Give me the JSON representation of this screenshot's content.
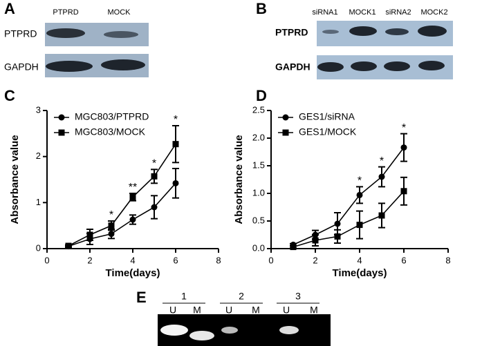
{
  "figure": {
    "panel_labels": [
      "A",
      "B",
      "C",
      "D",
      "E"
    ],
    "blot_a": {
      "columns": [
        "PTPRD",
        "MOCK"
      ],
      "rows": [
        "PTPRD",
        "GAPDH"
      ]
    },
    "blot_b": {
      "columns": [
        "siRNA1",
        "MOCK1",
        "siRNA2",
        "MOCK2"
      ],
      "rows": [
        "PTPRD",
        "GAPDH"
      ]
    },
    "gel_e": {
      "lanes": [
        "1",
        "2",
        "3"
      ],
      "sublanes": [
        "U",
        "M"
      ]
    }
  },
  "chart_data": [
    {
      "type": "line",
      "x_label": "Time(days)",
      "y_label": "Absorbance value",
      "xlim": [
        0,
        8
      ],
      "xticks": [
        0,
        2,
        4,
        6,
        8
      ],
      "ylim": [
        0,
        3
      ],
      "yticks": [
        0,
        1,
        2,
        3
      ],
      "x": [
        1,
        2,
        3,
        4,
        5,
        6
      ],
      "legend": "upper left",
      "series": [
        {
          "name": "MGC803/PTPRD",
          "color": "#000000",
          "marker": "circle",
          "values": [
            0.05,
            0.21,
            0.32,
            0.63,
            0.9,
            1.42
          ],
          "errors": [
            0.02,
            0.12,
            0.1,
            0.1,
            0.25,
            0.32
          ]
        },
        {
          "name": "MGC803/MOCK",
          "color": "#000000",
          "marker": "square",
          "values": [
            0.06,
            0.3,
            0.5,
            1.12,
            1.57,
            2.27
          ],
          "errors": [
            0.02,
            0.12,
            0.1,
            0.08,
            0.15,
            0.4
          ]
        }
      ],
      "annotations": [
        {
          "x": 3,
          "text": "*"
        },
        {
          "x": 4,
          "text": "**"
        },
        {
          "x": 5,
          "text": "*"
        },
        {
          "x": 6,
          "text": "*"
        }
      ]
    },
    {
      "type": "line",
      "x_label": "Time(days)",
      "y_label": "Absorbance value",
      "xlim": [
        0,
        8
      ],
      "xticks": [
        0,
        2,
        4,
        6,
        8
      ],
      "ylim": [
        0,
        2.5
      ],
      "yticks": [
        {
          "value": 0,
          "label": "0.0"
        },
        0.5,
        {
          "value": 1,
          "label": "1.0"
        },
        1.5,
        {
          "value": 2,
          "label": "2.0"
        },
        2.5
      ],
      "x": [
        1,
        2,
        3,
        4,
        5,
        6
      ],
      "legend": "upper left",
      "series": [
        {
          "name": "GES1/siRNA",
          "color": "#000000",
          "marker": "circle",
          "values": [
            0.07,
            0.25,
            0.45,
            0.97,
            1.3,
            1.83
          ],
          "errors": [
            0.02,
            0.08,
            0.2,
            0.15,
            0.18,
            0.25
          ]
        },
        {
          "name": "GES1/MOCK",
          "color": "#000000",
          "marker": "square",
          "values": [
            0.03,
            0.15,
            0.22,
            0.43,
            0.6,
            1.04
          ],
          "errors": [
            0.02,
            0.1,
            0.12,
            0.25,
            0.22,
            0.25
          ]
        }
      ],
      "annotations": [
        {
          "x": 4,
          "text": "*"
        },
        {
          "x": 5,
          "text": "*"
        },
        {
          "x": 6,
          "text": "*"
        }
      ]
    }
  ]
}
